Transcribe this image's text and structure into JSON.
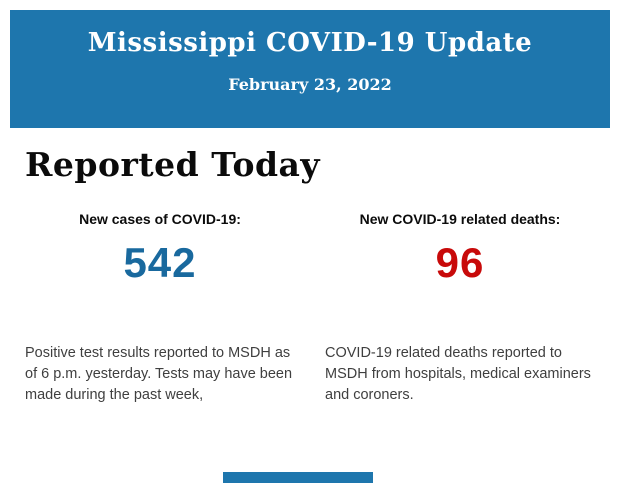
{
  "header": {
    "title": "Mississippi COVID-19 Update",
    "date": "February 23, 2022",
    "background_color": "#1e76ad",
    "text_color": "#ffffff"
  },
  "main": {
    "heading": "Reported Today",
    "stats": [
      {
        "label": "New cases of COVID-19:",
        "value": "542",
        "value_color": "#19699e",
        "description": "Positive test results reported to MSDH as\nof 6 p.m. yesterday. Tests may have been\nmade during the past week,"
      },
      {
        "label": "New COVID-19 related deaths:",
        "value": "96",
        "value_color": "#c80a0a",
        "description": "COVID-19 related deaths reported to\nMSDH from hospitals, medical examiners\nand coroners."
      }
    ]
  },
  "footer": {
    "bar_color": "#1e76ad"
  }
}
